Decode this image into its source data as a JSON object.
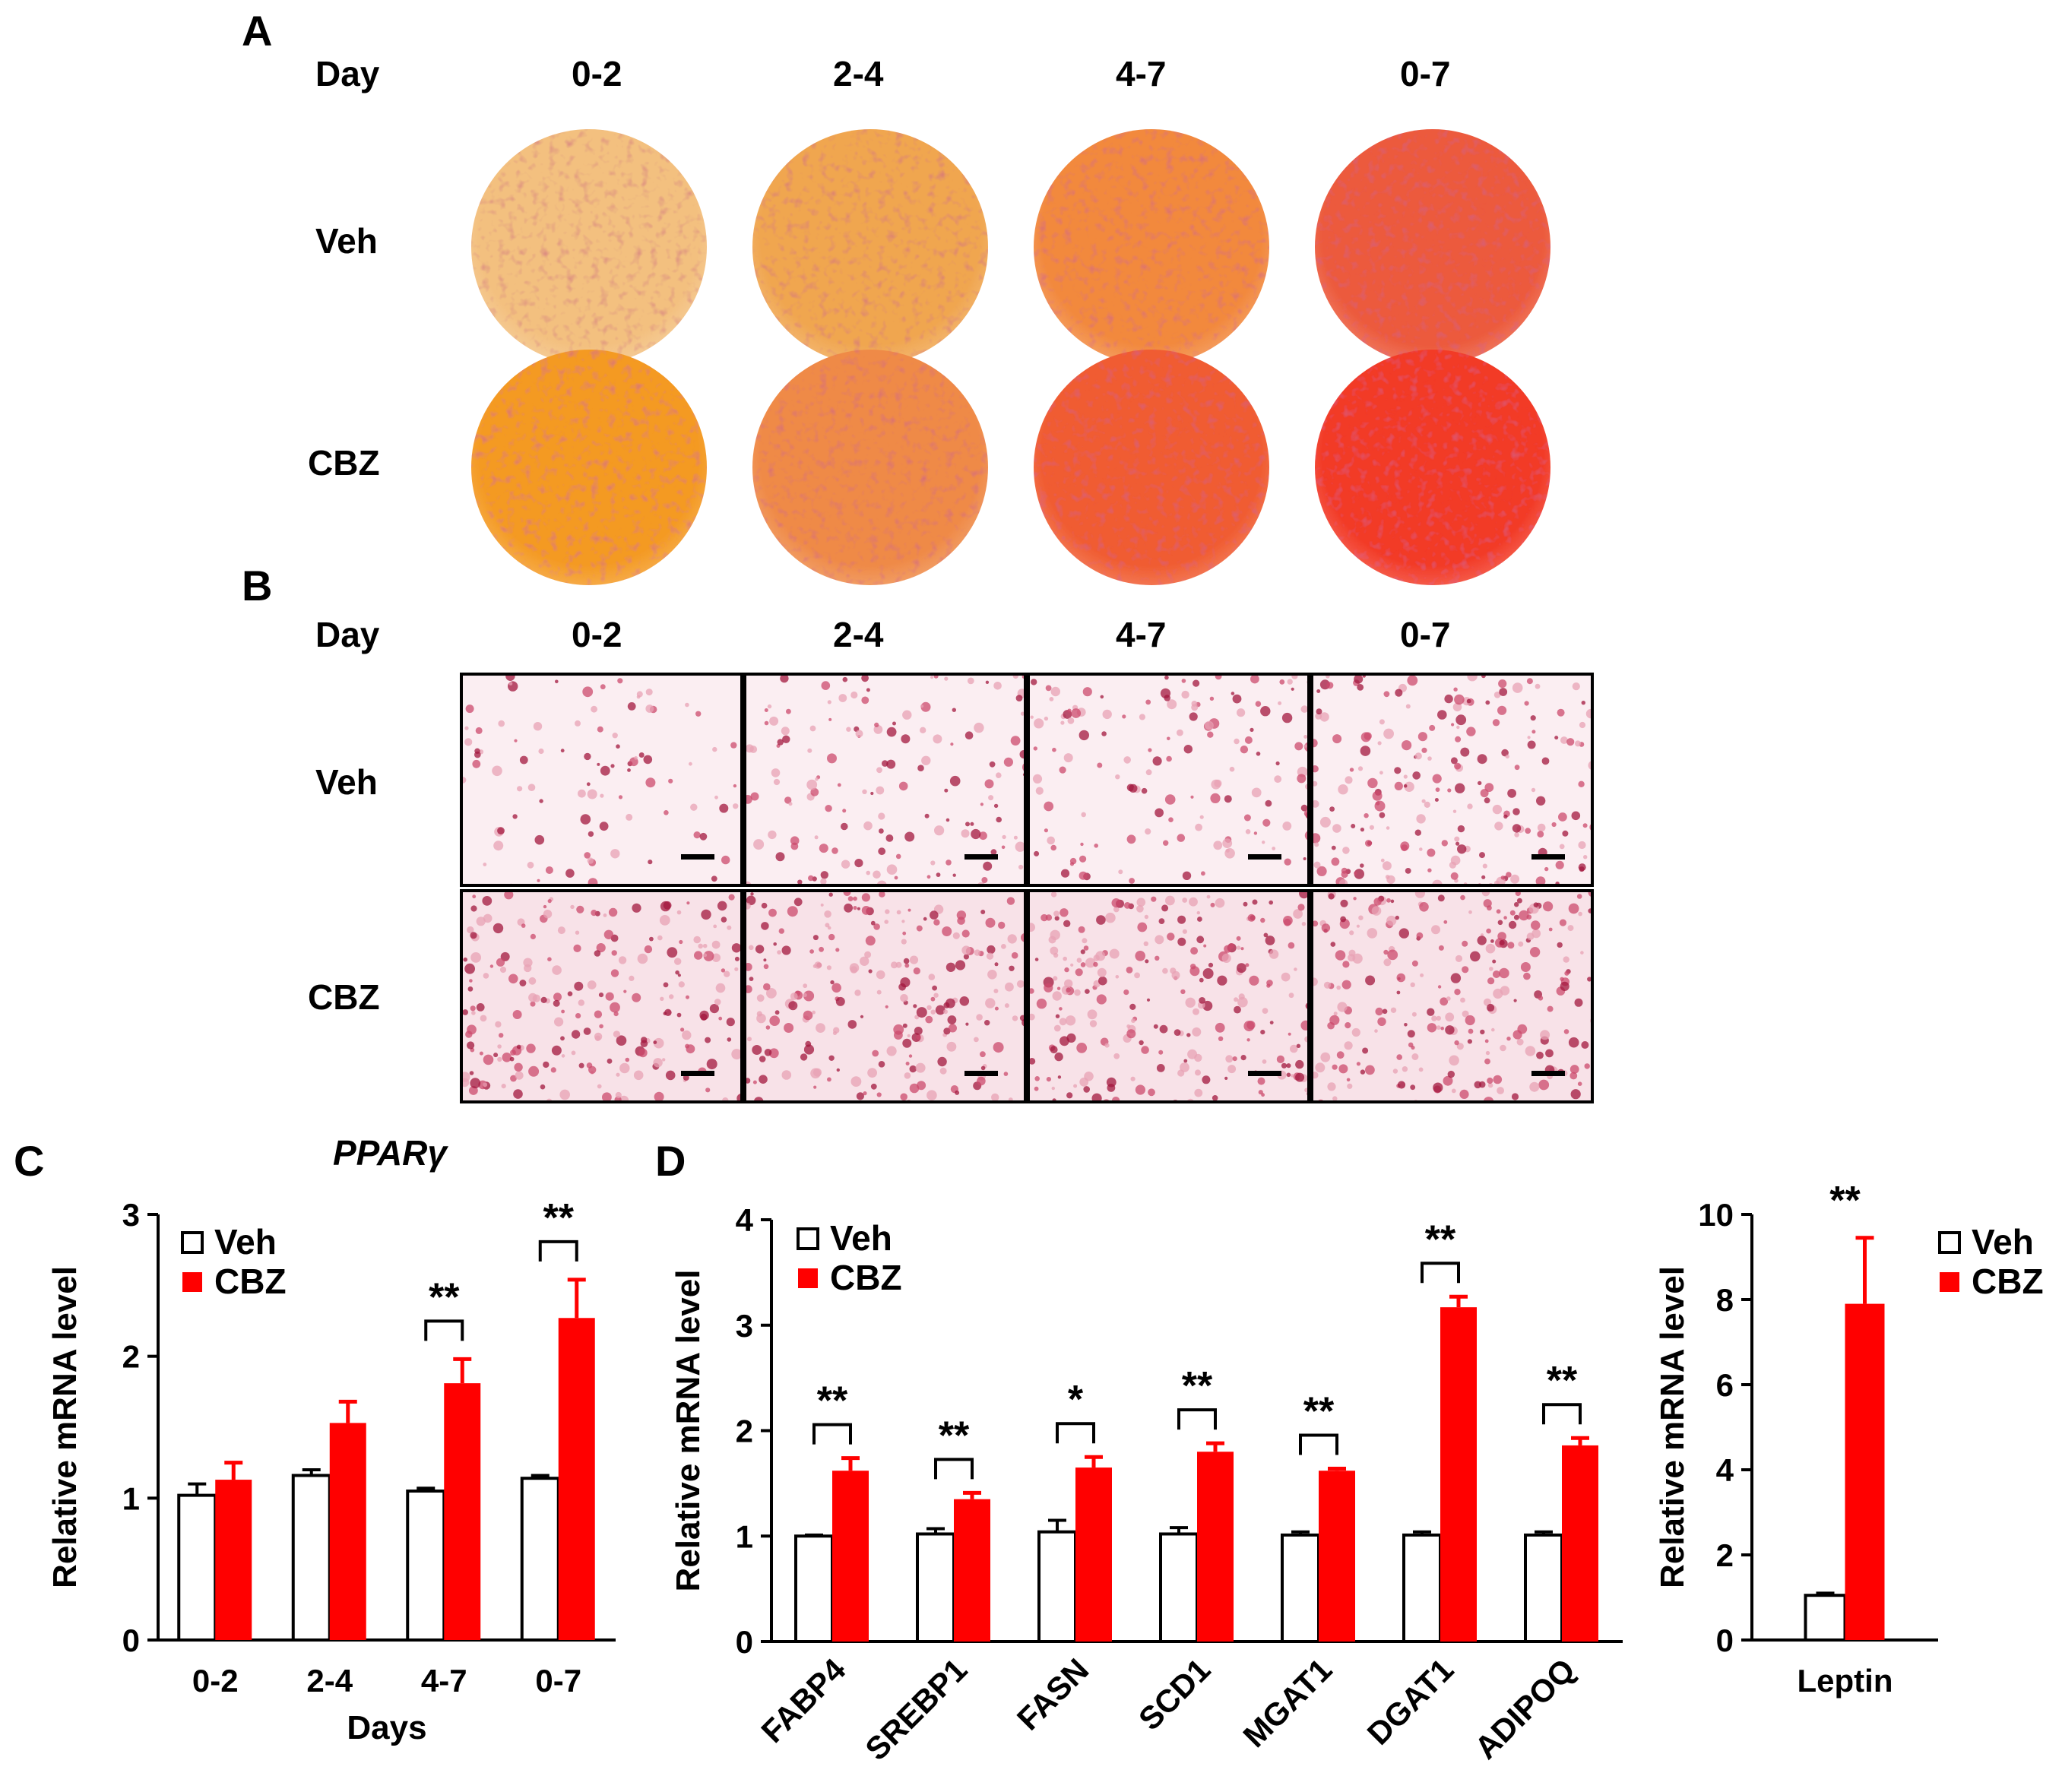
{
  "panel_a": {
    "label": "A",
    "day_label": "Day",
    "columns": [
      "0-2",
      "2-4",
      "4-7",
      "0-7"
    ],
    "rows": [
      "Veh",
      "CBZ"
    ],
    "well_colors": [
      [
        "#f3c07f",
        "#f0a650",
        "#f2893e",
        "#ec5a3c"
      ],
      [
        "#f49a24",
        "#ef8a47",
        "#f05c31",
        "#f23b27"
      ]
    ]
  },
  "panel_b": {
    "label": "B",
    "day_label": "Day",
    "columns": [
      "0-2",
      "2-4",
      "4-7",
      "0-7"
    ],
    "rows": [
      "Veh",
      "CBZ"
    ]
  },
  "panel_c": {
    "label": "C",
    "title": "PPARγ",
    "xlabel": "Days",
    "ylabel": "Relative mRNA level",
    "legend": [
      "Veh",
      "CBZ"
    ]
  },
  "panel_d": {
    "label": "D",
    "ylabel": "Relative mRNA level",
    "legend": [
      "Veh",
      "CBZ"
    ]
  },
  "panel_e": {
    "ylabel": "Relative mRNA level",
    "legend": [
      "Veh",
      "CBZ"
    ]
  },
  "colors": {
    "veh": "#ffffff",
    "cbz": "#ff0000",
    "axis": "#000000"
  },
  "chart_data": [
    {
      "id": "C",
      "type": "bar",
      "title": "PPARγ",
      "xlabel": "Days",
      "ylabel": "Relative mRNA level",
      "categories": [
        "0-2",
        "2-4",
        "4-7",
        "0-7"
      ],
      "series": [
        {
          "name": "Veh",
          "values": [
            1.02,
            1.16,
            1.05,
            1.14
          ],
          "errors": [
            0.08,
            0.04,
            0.02,
            0.02
          ]
        },
        {
          "name": "CBZ",
          "values": [
            1.13,
            1.53,
            1.81,
            2.27
          ],
          "errors": [
            0.12,
            0.15,
            0.17,
            0.27
          ]
        }
      ],
      "significance": [
        "",
        "",
        "**",
        "**"
      ],
      "ylim": [
        0,
        3
      ],
      "yticks": [
        0,
        1,
        2,
        3
      ],
      "legend_position": "top-left"
    },
    {
      "id": "D",
      "type": "bar",
      "xlabel": "",
      "ylabel": "Relative mRNA level",
      "categories": [
        "FABP4",
        "SREBP1",
        "FASN",
        "SCD1",
        "MGAT1",
        "DGAT1",
        "ADIPOQ"
      ],
      "series": [
        {
          "name": "Veh",
          "values": [
            1.0,
            1.02,
            1.04,
            1.02,
            1.01,
            1.01,
            1.01
          ],
          "errors": [
            0.01,
            0.05,
            0.11,
            0.06,
            0.03,
            0.03,
            0.03
          ]
        },
        {
          "name": "CBZ",
          "values": [
            1.62,
            1.35,
            1.65,
            1.8,
            1.62,
            3.17,
            1.86
          ],
          "errors": [
            0.12,
            0.06,
            0.1,
            0.08,
            0.02,
            0.1,
            0.07
          ]
        }
      ],
      "significance": [
        "**",
        "**",
        "*",
        "**",
        "**",
        "**",
        "**"
      ],
      "ylim": [
        0,
        4
      ],
      "yticks": [
        0,
        1,
        2,
        3,
        4
      ],
      "legend_position": "top-left"
    },
    {
      "id": "E",
      "type": "bar",
      "xlabel": "",
      "ylabel": "Relative mRNA level",
      "categories": [
        "Leptin"
      ],
      "series": [
        {
          "name": "Veh",
          "values": [
            1.05
          ],
          "errors": [
            0.05
          ]
        },
        {
          "name": "CBZ",
          "values": [
            7.9
          ],
          "errors": [
            1.55
          ]
        }
      ],
      "significance": [
        "**"
      ],
      "ylim": [
        0,
        10
      ],
      "yticks": [
        0,
        2,
        4,
        6,
        8,
        10
      ],
      "legend_position": "top-right"
    }
  ]
}
